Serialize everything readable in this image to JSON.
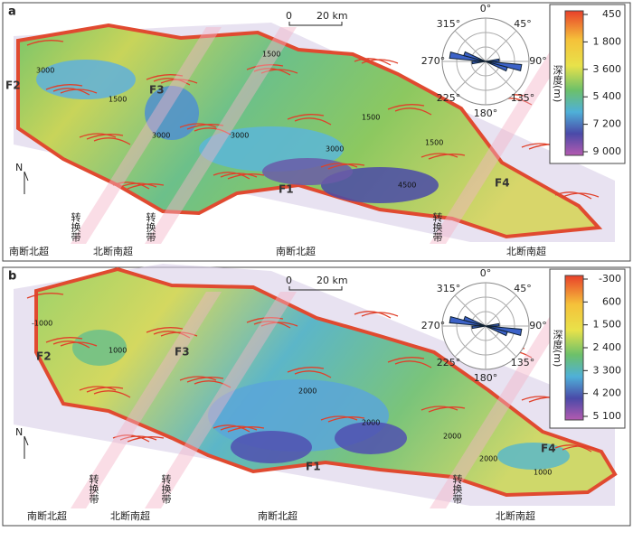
{
  "panels": [
    {
      "label": "a",
      "scale": {
        "start": "0",
        "end": "20 km"
      },
      "north": "N",
      "rose": [
        "0°",
        "45°",
        "90°",
        "135°",
        "180°",
        "225°",
        "270°",
        "315°"
      ],
      "legend": {
        "title": "深度(m)",
        "ticks": [
          "450",
          "1 800",
          "3 600",
          "5 400",
          "7 200",
          "9 000"
        ]
      },
      "faults": [
        "F2",
        "F3",
        "F1",
        "F4"
      ],
      "contours": [
        "3000",
        "1500",
        "3000",
        "3000",
        "1500",
        "1500",
        "4500",
        "3000",
        "1500"
      ],
      "zones": [
        "南断北超",
        "转换带",
        "北断南超",
        "转换带",
        "南断北超",
        "转换带",
        "北断南超"
      ]
    },
    {
      "label": "b",
      "scale": {
        "start": "0",
        "end": "20 km"
      },
      "north": "N",
      "rose": [
        "0°",
        "45°",
        "90°",
        "135°",
        "180°",
        "225°",
        "270°",
        "315°"
      ],
      "legend": {
        "title": "深度(m)",
        "ticks": [
          "-300",
          "600",
          "1 500",
          "2 400",
          "3 300",
          "4 200",
          "5 100"
        ]
      },
      "faults": [
        "F2",
        "F3",
        "F1",
        "F4"
      ],
      "contours": [
        "-1000",
        "1000",
        "2000",
        "2000",
        "2000",
        "2000",
        "1000"
      ],
      "zones": [
        "南断北超",
        "转换带",
        "北断南超",
        "转换带",
        "南断北超",
        "转换带",
        "北断南超"
      ]
    }
  ]
}
